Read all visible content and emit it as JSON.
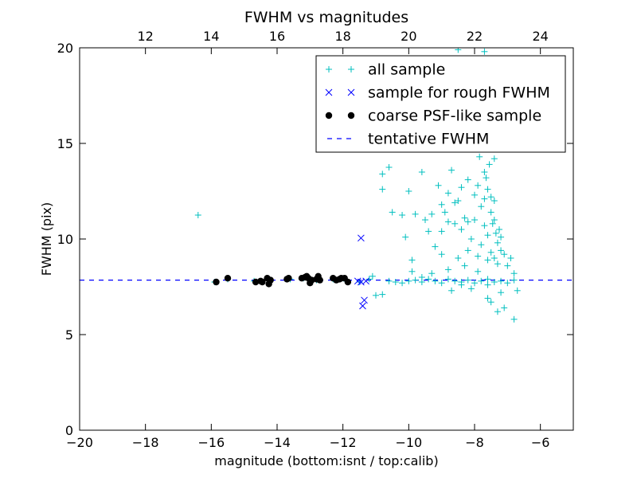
{
  "chart_data": {
    "type": "scatter",
    "title": "FWHM vs magnitudes",
    "xlabel": "magnitude (bottom:isnt / top:calib)",
    "ylabel": "FWHM (pix)",
    "xlim": [
      -20,
      -5
    ],
    "ylim": [
      0,
      20
    ],
    "x_ticks": [
      -20,
      -18,
      -16,
      -14,
      -12,
      -10,
      -8,
      -6
    ],
    "x_tick_labels": [
      "−20",
      "−18",
      "−16",
      "−14",
      "−12",
      "−10",
      "−8",
      "−6"
    ],
    "y_ticks": [
      0,
      5,
      10,
      15,
      20
    ],
    "y_tick_labels": [
      "0",
      "5",
      "10",
      "15",
      "20"
    ],
    "top_axis": {
      "offset": 30.0,
      "ticks": [
        12,
        14,
        16,
        18,
        20,
        22,
        24
      ],
      "tick_labels": [
        "12",
        "14",
        "16",
        "18",
        "20",
        "22",
        "24"
      ]
    },
    "legend": {
      "position": "top-right",
      "entries": [
        {
          "label": "all sample",
          "marker": "plus",
          "color": "#00bfbf"
        },
        {
          "label": "sample for rough FWHM",
          "marker": "x",
          "color": "#0000ff"
        },
        {
          "label": "coarse PSF-like sample",
          "marker": "dot",
          "color": "#000000"
        },
        {
          "label": "tentative FWHM",
          "marker": "dashed-line",
          "color": "#0000ff"
        }
      ]
    },
    "series": [
      {
        "name": "all sample",
        "marker": "plus",
        "color": "#00bfbf",
        "points": [
          [
            -16.4,
            11.25
          ],
          [
            -15.9,
            7.75
          ],
          [
            -15.5,
            7.9
          ],
          [
            -14.7,
            7.8
          ],
          [
            -14.3,
            7.85
          ],
          [
            -13.6,
            7.9
          ],
          [
            -13.2,
            7.95
          ],
          [
            -12.8,
            7.85
          ],
          [
            -12.3,
            7.9
          ],
          [
            -11.9,
            7.8
          ],
          [
            -11.5,
            7.75
          ],
          [
            -11.2,
            7.9
          ],
          [
            -11.1,
            8.05
          ],
          [
            -11.0,
            7.05
          ],
          [
            -10.8,
            7.1
          ],
          [
            -10.6,
            7.8
          ],
          [
            -10.4,
            7.75
          ],
          [
            -10.2,
            7.7
          ],
          [
            -10.0,
            7.8
          ],
          [
            -9.8,
            7.85
          ],
          [
            -9.6,
            7.75
          ],
          [
            -9.4,
            7.9
          ],
          [
            -9.2,
            7.8
          ],
          [
            -9.0,
            7.7
          ],
          [
            -8.8,
            7.9
          ],
          [
            -8.6,
            7.8
          ],
          [
            -8.4,
            7.75
          ],
          [
            -8.2,
            7.85
          ],
          [
            -8.0,
            7.7
          ],
          [
            -7.8,
            7.8
          ],
          [
            -7.6,
            7.9
          ],
          [
            -7.4,
            7.75
          ],
          [
            -7.2,
            7.8
          ],
          [
            -7.0,
            7.7
          ],
          [
            -6.8,
            7.85
          ],
          [
            -10.8,
            12.6
          ],
          [
            -10.8,
            13.4
          ],
          [
            -10.6,
            13.75
          ],
          [
            -10.5,
            11.4
          ],
          [
            -10.2,
            11.25
          ],
          [
            -10.1,
            10.1
          ],
          [
            -10.0,
            12.5
          ],
          [
            -9.9,
            8.9
          ],
          [
            -9.8,
            11.3
          ],
          [
            -9.6,
            13.5
          ],
          [
            -9.5,
            11.0
          ],
          [
            -9.4,
            10.4
          ],
          [
            -9.3,
            11.3
          ],
          [
            -9.2,
            9.6
          ],
          [
            -9.1,
            12.8
          ],
          [
            -9.0,
            10.4
          ],
          [
            -9.0,
            9.2
          ],
          [
            -8.9,
            11.4
          ],
          [
            -8.8,
            12.4
          ],
          [
            -8.7,
            13.6
          ],
          [
            -8.6,
            10.8
          ],
          [
            -8.5,
            9.0
          ],
          [
            -8.5,
            12.0
          ],
          [
            -8.4,
            10.5
          ],
          [
            -8.3,
            11.1
          ],
          [
            -8.2,
            9.4
          ],
          [
            -8.2,
            13.1
          ],
          [
            -8.1,
            10.0
          ],
          [
            -8.0,
            12.3
          ],
          [
            -8.0,
            14.7
          ],
          [
            -7.9,
            9.1
          ],
          [
            -7.8,
            11.7
          ],
          [
            -7.7,
            13.5
          ],
          [
            -7.6,
            10.2
          ],
          [
            -7.5,
            12.2
          ],
          [
            -7.5,
            9.3
          ],
          [
            -7.4,
            11.0
          ],
          [
            -7.3,
            8.7
          ],
          [
            -7.2,
            10.1
          ],
          [
            -7.1,
            9.2
          ],
          [
            -7.0,
            8.6
          ],
          [
            -6.9,
            9.0
          ],
          [
            -6.8,
            8.2
          ],
          [
            -8.6,
            14.8
          ],
          [
            -8.3,
            16.0
          ],
          [
            -8.1,
            17.2
          ],
          [
            -7.9,
            18.0
          ],
          [
            -7.8,
            16.5
          ],
          [
            -7.6,
            15.0
          ],
          [
            -7.4,
            14.2
          ],
          [
            -8.5,
            19.9
          ],
          [
            -8.0,
            19.4
          ],
          [
            -7.7,
            19.8
          ],
          [
            -8.7,
            7.3
          ],
          [
            -8.4,
            7.6
          ],
          [
            -8.1,
            7.4
          ],
          [
            -7.6,
            6.9
          ],
          [
            -7.5,
            6.7
          ],
          [
            -7.3,
            6.2
          ],
          [
            -7.1,
            6.4
          ],
          [
            -6.8,
            5.8
          ],
          [
            -6.7,
            7.3
          ],
          [
            -7.6,
            7.6
          ],
          [
            -7.2,
            7.2
          ],
          [
            -8.8,
            8.4
          ],
          [
            -8.3,
            8.6
          ],
          [
            -7.9,
            8.3
          ],
          [
            -7.7,
            12.1
          ],
          [
            -7.6,
            12.6
          ],
          [
            -7.5,
            11.4
          ],
          [
            -7.45,
            10.8
          ],
          [
            -7.4,
            12.0
          ],
          [
            -7.35,
            10.3
          ],
          [
            -7.3,
            9.8
          ],
          [
            -7.25,
            10.5
          ],
          [
            -7.2,
            9.4
          ],
          [
            -7.4,
            9.0
          ],
          [
            -7.6,
            8.9
          ],
          [
            -7.7,
            10.7
          ],
          [
            -7.8,
            9.7
          ],
          [
            -7.9,
            12.8
          ],
          [
            -8.0,
            11.0
          ],
          [
            -8.2,
            10.9
          ],
          [
            -8.4,
            12.7
          ],
          [
            -8.6,
            11.9
          ],
          [
            -8.8,
            10.9
          ],
          [
            -9.0,
            11.8
          ],
          [
            -9.3,
            8.2
          ],
          [
            -9.6,
            8.0
          ],
          [
            -9.9,
            8.3
          ],
          [
            -7.55,
            13.9
          ],
          [
            -7.65,
            13.2
          ],
          [
            -7.85,
            14.3
          ]
        ]
      },
      {
        "name": "sample for rough FWHM",
        "marker": "x",
        "color": "#0000ff",
        "points": [
          [
            -11.45,
            10.05
          ],
          [
            -11.4,
            6.5
          ],
          [
            -11.35,
            6.8
          ],
          [
            -11.45,
            7.75
          ],
          [
            -11.3,
            7.8
          ],
          [
            -11.55,
            7.8
          ]
        ]
      },
      {
        "name": "coarse PSF-like sample",
        "marker": "dot",
        "color": "#000000",
        "points": [
          [
            -15.85,
            7.75
          ],
          [
            -15.5,
            7.95
          ],
          [
            -14.65,
            7.75
          ],
          [
            -14.5,
            7.8
          ],
          [
            -14.45,
            7.75
          ],
          [
            -14.3,
            7.95
          ],
          [
            -14.25,
            7.65
          ],
          [
            -14.2,
            7.85
          ],
          [
            -13.7,
            7.9
          ],
          [
            -13.65,
            7.95
          ],
          [
            -13.25,
            7.95
          ],
          [
            -13.15,
            8.0
          ],
          [
            -13.1,
            8.05
          ],
          [
            -13.05,
            7.95
          ],
          [
            -13.0,
            7.7
          ],
          [
            -12.95,
            7.85
          ],
          [
            -12.8,
            7.9
          ],
          [
            -12.75,
            8.05
          ],
          [
            -12.7,
            7.85
          ],
          [
            -12.3,
            7.95
          ],
          [
            -12.2,
            7.85
          ],
          [
            -12.1,
            7.9
          ],
          [
            -12.05,
            7.95
          ],
          [
            -11.95,
            7.95
          ],
          [
            -11.85,
            7.75
          ]
        ]
      },
      {
        "name": "tentative FWHM",
        "type": "hline",
        "y": 7.85,
        "color": "#0000ff",
        "style": "dashed"
      }
    ]
  }
}
